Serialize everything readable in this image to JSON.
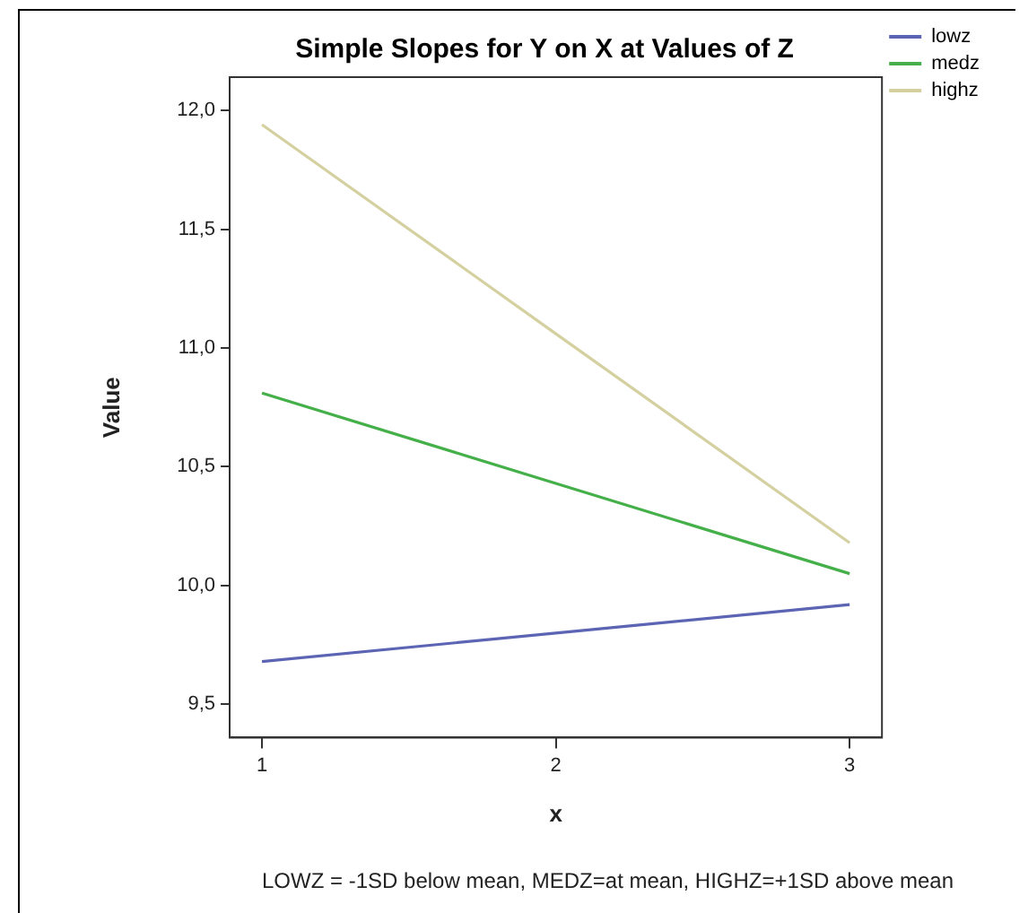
{
  "chart_data": {
    "type": "line",
    "title": "Simple Slopes for Y on X at Values of Z",
    "xlabel": "x",
    "ylabel": "Value",
    "x": [
      1,
      2,
      3
    ],
    "series": [
      {
        "name": "lowz",
        "color": "#5c64b4",
        "values": [
          9.68,
          9.8,
          9.92
        ]
      },
      {
        "name": "medz",
        "color": "#45b04a",
        "values": [
          10.81,
          10.43,
          10.05
        ]
      },
      {
        "name": "highz",
        "color": "#d4d0a0",
        "values": [
          11.94,
          11.06,
          10.18
        ]
      }
    ],
    "xlim": [
      0.89,
      3.11
    ],
    "xticks": [
      1,
      2,
      3
    ],
    "ylim": [
      9.36,
      12.14
    ],
    "yticks": [
      {
        "value": 9.5,
        "label": "9,5"
      },
      {
        "value": 10,
        "label": "10,0"
      },
      {
        "value": 10.5,
        "label": "10,5"
      },
      {
        "value": 11,
        "label": "11,0"
      },
      {
        "value": 11.5,
        "label": "11,5"
      },
      {
        "value": 12,
        "label": "12,0"
      }
    ],
    "grid": false,
    "legend": "top right",
    "marker": "none",
    "line_style": "solid",
    "annotations": [
      "LOWZ = -1SD below mean, MEDZ=at mean, HIGHZ=+1SD above mean"
    ]
  }
}
